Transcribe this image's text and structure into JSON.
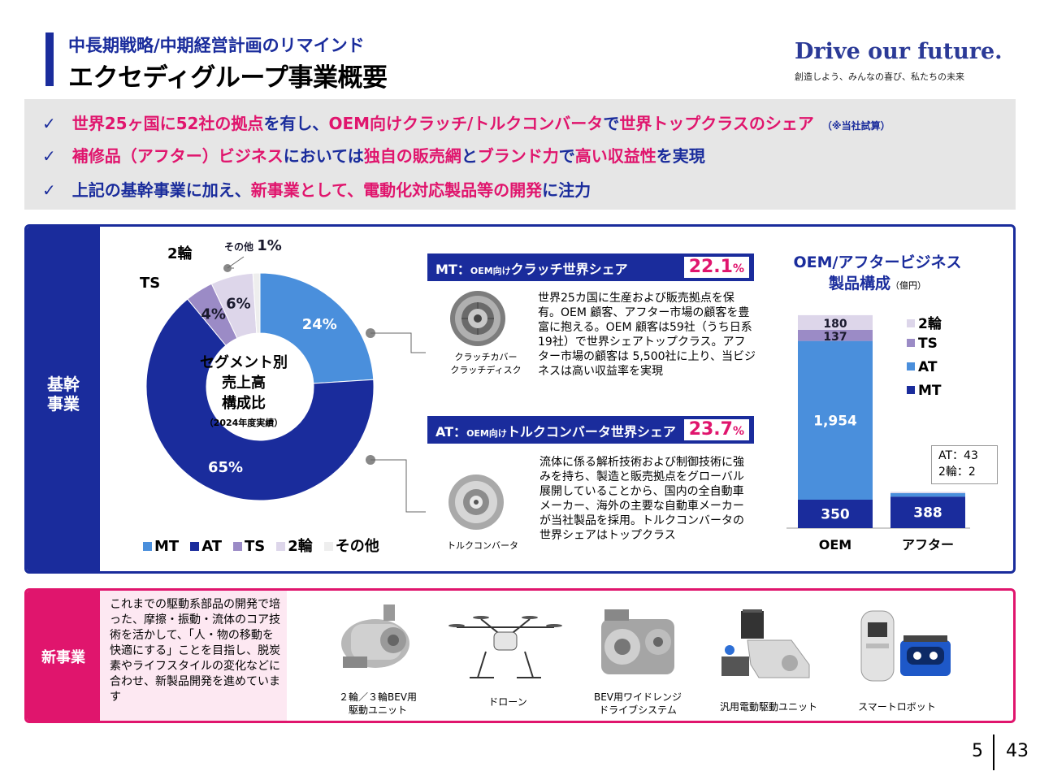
{
  "header": {
    "subtitle": "中長期戦略/中期経営計画のリマインド",
    "title": "エクセディグループ事業概要",
    "slogan": "Drive our future.",
    "slogan_sub": "創造しよう、みんなの喜び、私たちの未来"
  },
  "highlights": {
    "check_icon": "✓",
    "line1": [
      {
        "t": "世界25ヶ国に52社の拠点",
        "c": "pk"
      },
      {
        "t": "を有し、",
        "c": "bl"
      },
      {
        "t": "OEM向けクラッチ/トルクコンバータ",
        "c": "pk"
      },
      {
        "t": "で",
        "c": "bl"
      },
      {
        "t": "世界トップクラスのシェア",
        "c": "pk"
      }
    ],
    "line1_note": "（※当社試算）",
    "line2": [
      {
        "t": "補修品（アフター）ビジネス",
        "c": "pk"
      },
      {
        "t": "においては",
        "c": "bl"
      },
      {
        "t": "独自の販売網",
        "c": "pk"
      },
      {
        "t": "と",
        "c": "bl"
      },
      {
        "t": "ブランド力",
        "c": "pk"
      },
      {
        "t": "で",
        "c": "bl"
      },
      {
        "t": "高い収益性",
        "c": "pk"
      },
      {
        "t": "を実現",
        "c": "bl"
      }
    ],
    "line3": [
      {
        "t": "上記の基幹事業に加え、",
        "c": "bl"
      },
      {
        "t": "新事業として、電動化対応製品等の開発",
        "c": "pk"
      },
      {
        "t": "に注力",
        "c": "bl"
      }
    ]
  },
  "core": {
    "label_line1": "基幹",
    "label_line2": "事業",
    "donut": {
      "center_line1": "セグメント別",
      "center_line2": "売上高",
      "center_line3": "構成比",
      "center_sub": "（2024年度実績）",
      "slices": [
        {
          "name": "MT",
          "value": 24,
          "label": "24%",
          "color": "#4a8fdc"
        },
        {
          "name": "AT",
          "value": 65,
          "label": "65%",
          "color": "#1a2c9c"
        },
        {
          "name": "TS",
          "value": 4,
          "label": "4%",
          "color": "#9b8bc6"
        },
        {
          "name": "2輪",
          "value": 6,
          "label": "6%",
          "color": "#ddd6ea"
        },
        {
          "name": "その他",
          "value": 1,
          "label": "1%",
          "color": "#eeeeee"
        }
      ],
      "outer_ts": "TS",
      "outer_2w": "2輪",
      "outer_other_name": "その他",
      "outer_other_val": "1%"
    },
    "mt": {
      "banner_prefix": "MT：",
      "banner_small": "OEM向け",
      "banner_main": "クラッチ世界シェア",
      "share": "22.1",
      "share_unit": "%",
      "cap1": "クラッチカバー",
      "cap2": "クラッチディスク",
      "desc": "世界25カ国に生産および販売拠点を保有。OEM 顧客、アフター市場の顧客を豊富に抱える。OEM 顧客は59社（うち日系19社）で世界シェアトップクラス。アフター市場の顧客は 5,500社に上り、当ビジネスは高い収益率を実現"
    },
    "at": {
      "banner_prefix": "AT：",
      "banner_small": "OEM向け",
      "banner_main": "トルクコンバータ世界シェア",
      "share": "23.7",
      "share_unit": "%",
      "cap": "トルクコンバータ",
      "desc": "流体に係る解析技術および制御技術に強みを持ち、製造と販売拠点をグローバル展開していることから、国内の全自動車メーカー、海外の主要な自動車メーカーが当社製品を採用。トルクコンバータの世界シェアはトップクラス"
    },
    "bar_chart": {
      "title_line1": "OEM/アフタービジネス",
      "title_line2": "製品構成",
      "unit": "（億円）",
      "legend": [
        "2輪",
        "TS",
        "AT",
        "MT"
      ],
      "note_line1": "AT：43",
      "note_line2": "2輪：2"
    }
  },
  "chart_data": [
    {
      "type": "pie",
      "title": "セグメント別売上高構成比",
      "subtitle": "（2024年度実績）",
      "categories": [
        "MT",
        "AT",
        "TS",
        "2輪",
        "その他"
      ],
      "values": [
        24,
        65,
        4,
        6,
        1
      ],
      "legend": "bottom"
    },
    {
      "type": "bar",
      "stacked": true,
      "title": "OEM/アフタービジネス製品構成",
      "ylabel": "（億円）",
      "categories": [
        "OEM",
        "アフター"
      ],
      "series": [
        {
          "name": "MT",
          "values": [
            350,
            388
          ],
          "labels": [
            "350",
            "388"
          ],
          "color": "#1a2c9c"
        },
        {
          "name": "AT",
          "values": [
            1954,
            43
          ],
          "labels": [
            "1,954",
            ""
          ],
          "color": "#4a8fdc"
        },
        {
          "name": "TS",
          "values": [
            137,
            0
          ],
          "labels": [
            "137",
            ""
          ],
          "color": "#9b8bc6"
        },
        {
          "name": "2輪",
          "values": [
            180,
            2
          ],
          "labels": [
            "180",
            ""
          ],
          "color": "#ddd6ea"
        }
      ],
      "legend": "right"
    }
  ],
  "newbiz": {
    "label": "新事業",
    "desc": "これまでの駆動系部品の開発で培った、摩擦・振動・流体のコア技術を活かして、「人・物の移動を快適にする」ことを目指し、脱炭素やライフスタイルの変化などに合わせ、新製品開発を進めています",
    "items": [
      {
        "cap1": "２輪／３輪BEV用",
        "cap2": "駆動ユニット"
      },
      {
        "cap1": "ドローン",
        "cap2": ""
      },
      {
        "cap1": "BEV用ワイドレンジ",
        "cap2": "ドライブシステム"
      },
      {
        "cap1": "汎用電動駆動ユニット",
        "cap2": ""
      },
      {
        "cap1": "スマートロボット",
        "cap2": ""
      }
    ]
  },
  "page": {
    "current": "5",
    "total": "43"
  }
}
